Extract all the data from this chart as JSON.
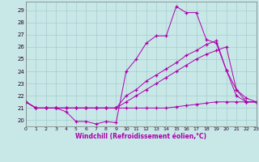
{
  "xlabel": "Windchill (Refroidissement éolien,°C)",
  "bg_color": "#c8e8e8",
  "grid_color": "#a8cccc",
  "line_color": "#aa00aa",
  "xlim": [
    0,
    23
  ],
  "ylim": [
    19.5,
    29.7
  ],
  "xtick_vals": [
    0,
    1,
    2,
    3,
    4,
    5,
    6,
    7,
    8,
    9,
    10,
    11,
    12,
    13,
    14,
    15,
    16,
    17,
    18,
    19,
    20,
    21,
    22,
    23
  ],
  "ytick_vals": [
    20,
    21,
    22,
    23,
    24,
    25,
    26,
    27,
    28,
    29
  ],
  "series1": [
    21.5,
    21.0,
    21.0,
    21.0,
    20.7,
    19.9,
    19.9,
    19.7,
    19.9,
    19.8,
    24.0,
    25.0,
    26.3,
    26.9,
    26.9,
    29.3,
    28.8,
    28.8,
    26.6,
    26.3,
    24.1,
    22.0,
    21.5,
    21.5
  ],
  "series2": [
    21.5,
    21.0,
    21.0,
    21.0,
    21.0,
    21.0,
    21.0,
    21.0,
    21.0,
    21.0,
    21.0,
    21.0,
    21.0,
    21.0,
    21.0,
    21.1,
    21.2,
    21.3,
    21.4,
    21.5,
    21.5,
    21.5,
    21.5,
    21.5
  ],
  "series3": [
    21.5,
    21.0,
    21.0,
    21.0,
    21.0,
    21.0,
    21.0,
    21.0,
    21.0,
    21.0,
    21.5,
    22.0,
    22.5,
    23.0,
    23.5,
    24.0,
    24.5,
    25.0,
    25.4,
    25.7,
    26.0,
    22.5,
    21.5,
    21.5
  ],
  "series4": [
    21.5,
    21.0,
    21.0,
    21.0,
    21.0,
    21.0,
    21.0,
    21.0,
    21.0,
    21.0,
    22.0,
    22.5,
    23.2,
    23.7,
    24.2,
    24.7,
    25.3,
    25.7,
    26.2,
    26.5,
    24.1,
    22.5,
    21.8,
    21.5
  ]
}
